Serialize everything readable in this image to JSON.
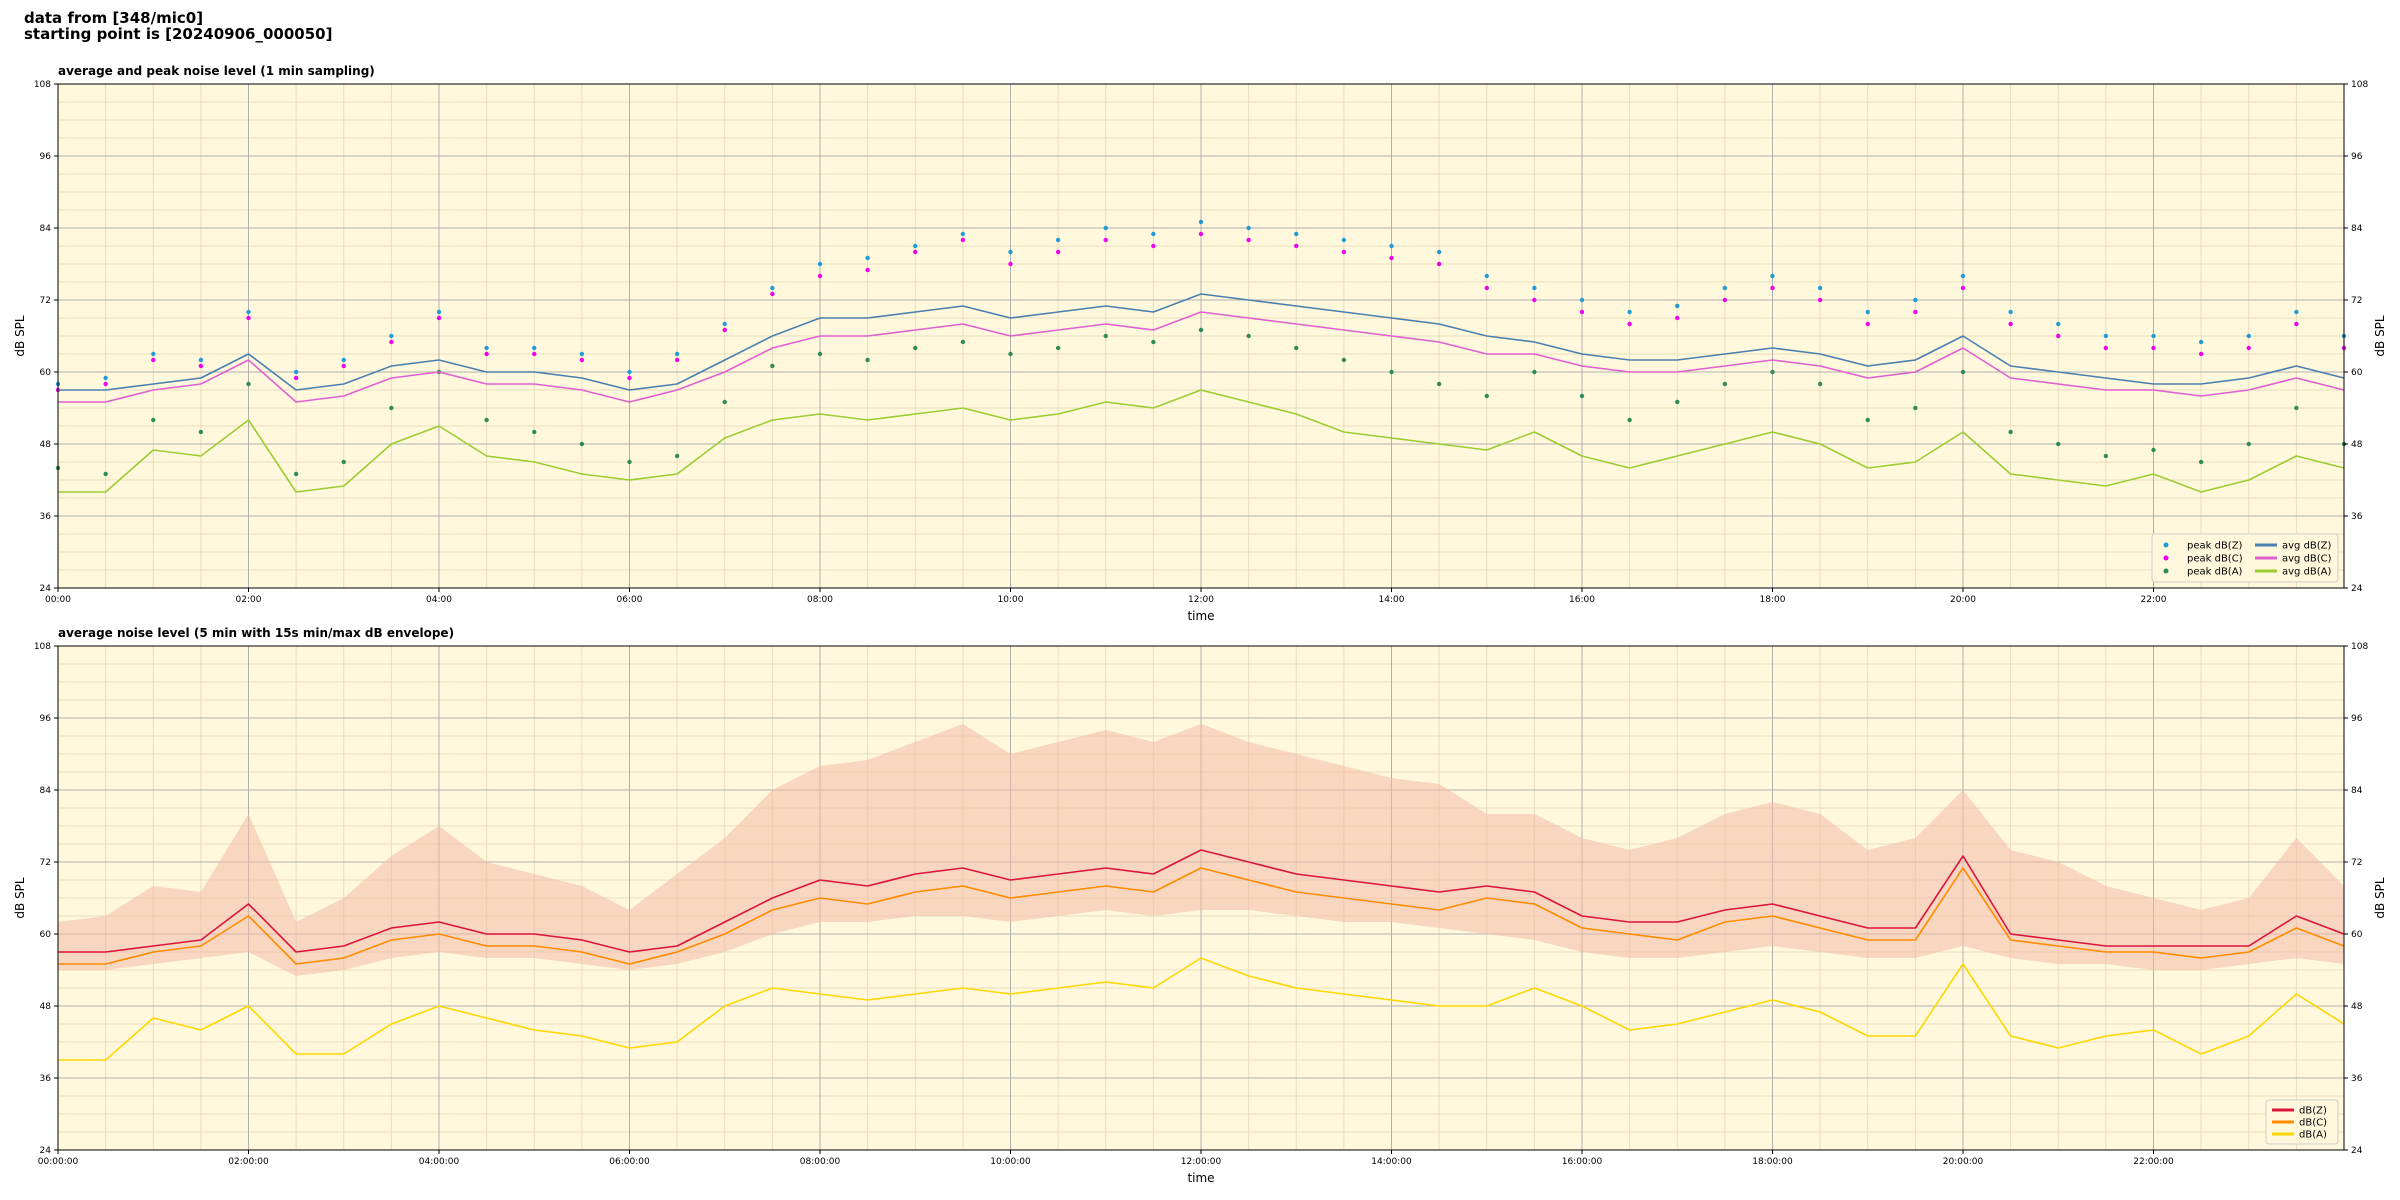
{
  "figure": {
    "suptitle_line1": "data from [348/mic0]",
    "suptitle_line2": "starting point is [20240906_000050]",
    "background": "#fff8dc"
  },
  "chart_data": [
    {
      "type": "line",
      "title": "average and peak noise level (1 min sampling)",
      "xlabel": "time",
      "ylabel": "dB SPL",
      "ylim": [
        24,
        108
      ],
      "yticks": [
        24,
        36,
        48,
        60,
        72,
        84,
        96,
        108
      ],
      "xlim_hours": [
        0,
        24
      ],
      "x_tick_hours": [
        0,
        2,
        4,
        6,
        8,
        10,
        12,
        14,
        16,
        18,
        20,
        22
      ],
      "x_tick_labels": [
        "00:00",
        "02:00",
        "04:00",
        "06:00",
        "08:00",
        "10:00",
        "12:00",
        "14:00",
        "16:00",
        "18:00",
        "20:00",
        "22:00"
      ],
      "grid": true,
      "legend_position": "lower-right",
      "x_hours": [
        0,
        0.5,
        1,
        1.5,
        2,
        2.5,
        3,
        3.5,
        4,
        4.5,
        5,
        5.5,
        6,
        6.5,
        7,
        7.5,
        8,
        8.5,
        9,
        9.5,
        10,
        10.5,
        11,
        11.5,
        12,
        12.5,
        13,
        13.5,
        14,
        14.5,
        15,
        15.5,
        16,
        16.5,
        17,
        17.5,
        18,
        18.5,
        19,
        19.5,
        20,
        20.5,
        21,
        21.5,
        22,
        22.5,
        23,
        23.5,
        24
      ],
      "series": [
        {
          "name": "peak dB(Z)",
          "kind": "scatter",
          "color": "#1f9bd7",
          "values": [
            58,
            59,
            63,
            62,
            70,
            60,
            62,
            66,
            70,
            64,
            64,
            63,
            60,
            63,
            68,
            74,
            78,
            79,
            81,
            83,
            80,
            82,
            84,
            83,
            85,
            84,
            83,
            82,
            81,
            80,
            76,
            74,
            72,
            70,
            71,
            74,
            76,
            74,
            70,
            72,
            76,
            70,
            68,
            66,
            66,
            65,
            66,
            70,
            66
          ]
        },
        {
          "name": "peak dB(C)",
          "kind": "scatter",
          "color": "#ee00ee",
          "values": [
            57,
            58,
            62,
            61,
            69,
            59,
            61,
            65,
            69,
            63,
            63,
            62,
            59,
            62,
            67,
            73,
            76,
            77,
            80,
            82,
            78,
            80,
            82,
            81,
            83,
            82,
            81,
            80,
            79,
            78,
            74,
            72,
            70,
            68,
            69,
            72,
            74,
            72,
            68,
            70,
            74,
            68,
            66,
            64,
            64,
            63,
            64,
            68,
            64
          ]
        },
        {
          "name": "peak dB(A)",
          "kind": "scatter",
          "color": "#2e8b57",
          "values": [
            44,
            43,
            52,
            50,
            58,
            43,
            45,
            54,
            60,
            52,
            50,
            48,
            45,
            46,
            55,
            61,
            63,
            62,
            64,
            65,
            63,
            64,
            66,
            65,
            67,
            66,
            64,
            62,
            60,
            58,
            56,
            60,
            56,
            52,
            55,
            58,
            60,
            58,
            52,
            54,
            60,
            50,
            48,
            46,
            47,
            45,
            48,
            54,
            48
          ]
        },
        {
          "name": "avg dB(Z)",
          "kind": "line",
          "color": "#4a7fb0",
          "values": [
            57,
            57,
            58,
            59,
            63,
            57,
            58,
            61,
            62,
            60,
            60,
            59,
            57,
            58,
            62,
            66,
            69,
            69,
            70,
            71,
            69,
            70,
            71,
            70,
            73,
            72,
            71,
            70,
            69,
            68,
            66,
            65,
            63,
            62,
            62,
            63,
            64,
            63,
            61,
            62,
            66,
            61,
            60,
            59,
            58,
            58,
            59,
            61,
            59
          ]
        },
        {
          "name": "avg dB(C)",
          "kind": "line",
          "color": "#e060d0",
          "values": [
            55,
            55,
            57,
            58,
            62,
            55,
            56,
            59,
            60,
            58,
            58,
            57,
            55,
            57,
            60,
            64,
            66,
            66,
            67,
            68,
            66,
            67,
            68,
            67,
            70,
            69,
            68,
            67,
            66,
            65,
            63,
            63,
            61,
            60,
            60,
            61,
            62,
            61,
            59,
            60,
            64,
            59,
            58,
            57,
            57,
            56,
            57,
            59,
            57
          ]
        },
        {
          "name": "avg dB(A)",
          "kind": "line",
          "color": "#9acd32",
          "values": [
            40,
            40,
            47,
            46,
            52,
            40,
            41,
            48,
            51,
            46,
            45,
            43,
            42,
            43,
            49,
            52,
            53,
            52,
            53,
            54,
            52,
            53,
            55,
            54,
            57,
            55,
            53,
            50,
            49,
            48,
            47,
            50,
            46,
            44,
            46,
            48,
            50,
            48,
            44,
            45,
            50,
            43,
            42,
            41,
            43,
            40,
            42,
            46,
            44
          ]
        }
      ]
    },
    {
      "type": "line",
      "title": "average noise level (5 min with 15s min/max dB envelope)",
      "xlabel": "time",
      "ylabel": "dB SPL",
      "ylim": [
        24,
        108
      ],
      "yticks": [
        24,
        36,
        48,
        60,
        72,
        84,
        96,
        108
      ],
      "xlim_hours": [
        0,
        24
      ],
      "x_tick_hours": [
        0,
        2,
        4,
        6,
        8,
        10,
        12,
        14,
        16,
        18,
        20,
        22
      ],
      "x_tick_labels": [
        "00:00:00",
        "02:00:00",
        "04:00:00",
        "06:00:00",
        "08:00:00",
        "10:00:00",
        "12:00:00",
        "14:00:00",
        "16:00:00",
        "18:00:00",
        "20:00:00",
        "22:00:00"
      ],
      "grid": true,
      "legend_position": "lower-right",
      "x_hours": [
        0,
        0.5,
        1,
        1.5,
        2,
        2.5,
        3,
        3.5,
        4,
        4.5,
        5,
        5.5,
        6,
        6.5,
        7,
        7.5,
        8,
        8.5,
        9,
        9.5,
        10,
        10.5,
        11,
        11.5,
        12,
        12.5,
        13,
        13.5,
        14,
        14.5,
        15,
        15.5,
        16,
        16.5,
        17,
        17.5,
        18,
        18.5,
        19,
        19.5,
        20,
        20.5,
        21,
        21.5,
        22,
        22.5,
        23,
        23.5,
        24
      ],
      "envelope": {
        "color": "#f4b9a8",
        "min": [
          54,
          54,
          55,
          56,
          57,
          53,
          54,
          56,
          57,
          56,
          56,
          55,
          54,
          55,
          57,
          60,
          62,
          62,
          63,
          63,
          62,
          63,
          64,
          63,
          64,
          64,
          63,
          62,
          62,
          61,
          60,
          59,
          57,
          56,
          56,
          57,
          58,
          57,
          56,
          56,
          58,
          56,
          55,
          55,
          54,
          54,
          55,
          56,
          55
        ],
        "max": [
          62,
          63,
          68,
          67,
          80,
          62,
          66,
          73,
          78,
          72,
          70,
          68,
          64,
          70,
          76,
          84,
          88,
          89,
          92,
          95,
          90,
          92,
          94,
          92,
          95,
          92,
          90,
          88,
          86,
          85,
          80,
          80,
          76,
          74,
          76,
          80,
          82,
          80,
          74,
          76,
          84,
          74,
          72,
          68,
          66,
          64,
          66,
          76,
          68
        ]
      },
      "series": [
        {
          "name": "dB(Z)",
          "color": "#dc143c",
          "values": [
            57,
            57,
            58,
            59,
            65,
            57,
            58,
            61,
            62,
            60,
            60,
            59,
            57,
            58,
            62,
            66,
            69,
            68,
            70,
            71,
            69,
            70,
            71,
            70,
            74,
            72,
            70,
            69,
            68,
            67,
            68,
            67,
            63,
            62,
            62,
            64,
            65,
            63,
            61,
            61,
            73,
            60,
            59,
            58,
            58,
            58,
            58,
            63,
            60
          ]
        },
        {
          "name": "dB(C)",
          "color": "#ff8c00",
          "values": [
            55,
            55,
            57,
            58,
            63,
            55,
            56,
            59,
            60,
            58,
            58,
            57,
            55,
            57,
            60,
            64,
            66,
            65,
            67,
            68,
            66,
            67,
            68,
            67,
            71,
            69,
            67,
            66,
            65,
            64,
            66,
            65,
            61,
            60,
            59,
            62,
            63,
            61,
            59,
            59,
            71,
            59,
            58,
            57,
            57,
            56,
            57,
            61,
            58
          ]
        },
        {
          "name": "dB(A)",
          "color": "#ffd700",
          "values": [
            39,
            39,
            46,
            44,
            48,
            40,
            40,
            45,
            48,
            46,
            44,
            43,
            41,
            42,
            48,
            51,
            50,
            49,
            50,
            51,
            50,
            51,
            52,
            51,
            56,
            53,
            51,
            50,
            49,
            48,
            48,
            51,
            48,
            44,
            45,
            47,
            49,
            47,
            43,
            43,
            55,
            43,
            41,
            43,
            44,
            40,
            43,
            50,
            45
          ]
        }
      ]
    }
  ]
}
